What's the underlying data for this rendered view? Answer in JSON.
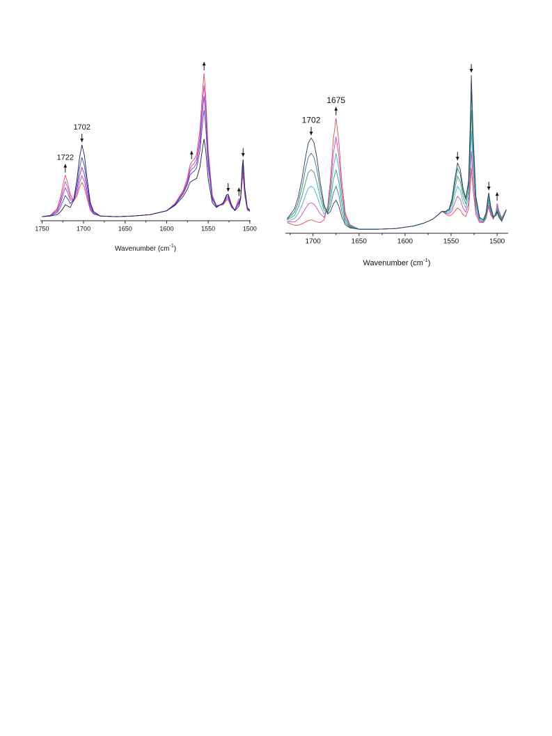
{
  "chart_data": [
    {
      "type": "line",
      "xlim": [
        1752,
        1499
      ],
      "xticks": [
        1750,
        1700,
        1650,
        1600,
        1550,
        1500
      ],
      "xminor": [
        1725,
        1675,
        1625,
        1575,
        1525
      ],
      "xlabel": [
        "Wavenumber (cm",
        "-1",
        ")"
      ],
      "x": [
        1750,
        1740,
        1732,
        1728,
        1725,
        1722,
        1719,
        1716,
        1712,
        1708,
        1705,
        1702,
        1699,
        1696,
        1692,
        1688,
        1680,
        1660,
        1640,
        1620,
        1600,
        1590,
        1580,
        1575,
        1572,
        1570,
        1567,
        1564,
        1560,
        1557,
        1555,
        1553,
        1550,
        1545,
        1540,
        1532,
        1528,
        1526,
        1522,
        1518,
        1515,
        1513,
        1511,
        1509,
        1508,
        1506,
        1503,
        1500
      ],
      "series": [
        {
          "color": "#e8474a",
          "values": [
            3,
            5,
            15,
            31,
            50,
            66,
            54,
            37,
            27,
            34,
            47,
            55,
            47,
            32,
            13,
            7,
            4,
            3,
            4,
            6,
            12,
            23,
            43,
            62,
            81,
            86,
            90,
            97,
            134,
            190,
            221,
            187,
            104,
            35,
            20,
            21,
            28,
            29,
            17,
            13,
            24,
            30,
            31,
            59,
            65,
            35,
            13,
            11
          ]
        },
        {
          "color": "#c040d0",
          "values": [
            3,
            5,
            13,
            26,
            42,
            56,
            47,
            32,
            27,
            38,
            54,
            65,
            56,
            37,
            15,
            7,
            4,
            3,
            4,
            6,
            12,
            22,
            41,
            58,
            76,
            80,
            84,
            90,
            123,
            174,
            202,
            171,
            95,
            33,
            19,
            22,
            30,
            31,
            18,
            13,
            22,
            27,
            31,
            64,
            71,
            38,
            14,
            11
          ]
        },
        {
          "color": "#8a3ad8",
          "values": [
            3,
            5,
            11,
            22,
            35,
            47,
            39,
            28,
            27,
            44,
            64,
            78,
            67,
            44,
            18,
            8,
            4,
            3,
            4,
            6,
            12,
            22,
            39,
            55,
            71,
            75,
            78,
            84,
            114,
            161,
            186,
            158,
            88,
            31,
            19,
            23,
            32,
            33,
            19,
            13,
            20,
            25,
            31,
            69,
            77,
            41,
            15,
            12
          ]
        },
        {
          "color": "#4040c8",
          "values": [
            3,
            4,
            9,
            17,
            26,
            35,
            30,
            23,
            28,
            50,
            76,
            93,
            80,
            53,
            21,
            9,
            4,
            3,
            4,
            6,
            12,
            21,
            38,
            52,
            66,
            69,
            72,
            77,
            103,
            143,
            165,
            140,
            79,
            29,
            18,
            23,
            34,
            35,
            20,
            13,
            19,
            23,
            31,
            73,
            83,
            44,
            16,
            12
          ]
        },
        {
          "color": "#1a1a50",
          "values": [
            3,
            4,
            6,
            10,
            15,
            21,
            19,
            17,
            28,
            59,
            91,
            112,
            96,
            63,
            25,
            11,
            4,
            3,
            4,
            6,
            12,
            20,
            34,
            45,
            55,
            57,
            59,
            61,
            78,
            106,
            121,
            104,
            60,
            24,
            17,
            24,
            36,
            37,
            21,
            12,
            16,
            19,
            30,
            79,
            90,
            47,
            17,
            13
          ]
        }
      ],
      "annotations": [
        {
          "x": 1722,
          "label": "1722",
          "direction": "up"
        },
        {
          "x": 1702,
          "label": "1702",
          "direction": "down"
        },
        {
          "x": 1570,
          "direction": "up"
        },
        {
          "x": 1555,
          "direction": "up"
        },
        {
          "x": 1526,
          "direction": "down"
        },
        {
          "x": 1513,
          "direction": "up"
        },
        {
          "x": 1508,
          "direction": "down"
        }
      ]
    },
    {
      "type": "line",
      "xlim": [
        1730,
        1488
      ],
      "xticks": [
        1700,
        1650,
        1600,
        1550,
        1500
      ],
      "xminor": [
        1725,
        1675,
        1625,
        1575,
        1525
      ],
      "xlabel": [
        "Wavenumber (cm",
        "-1",
        ")"
      ],
      "x": [
        1728,
        1720,
        1716,
        1712,
        1708,
        1705,
        1702,
        1699,
        1696,
        1692,
        1688,
        1684,
        1681,
        1678,
        1675,
        1672,
        1669,
        1665,
        1660,
        1650,
        1630,
        1610,
        1590,
        1580,
        1570,
        1564,
        1560,
        1556,
        1552,
        1549,
        1546,
        1543,
        1540,
        1537,
        1534,
        1531,
        1529,
        1528,
        1526,
        1523,
        1519,
        1515,
        1512,
        1510,
        1509,
        1507,
        1504,
        1501,
        1500,
        1498,
        1495,
        1490
      ],
      "series": [
        {
          "color": "#e84a4a",
          "values": [
            13,
            9,
            9,
            11,
            14,
            16,
            17,
            16,
            14,
            13,
            17,
            38,
            79,
            138,
            171,
            137,
            79,
            28,
            10,
            3,
            3,
            4,
            8,
            12,
            18,
            25,
            30,
            26,
            23,
            25,
            30,
            35,
            32,
            25,
            22,
            34,
            70,
            95,
            61,
            25,
            13,
            13,
            19,
            32,
            36,
            25,
            18,
            31,
            42,
            31,
            20,
            33
          ]
        },
        {
          "color": "#d040c0",
          "values": [
            14,
            14,
            18,
            25,
            35,
            41,
            43,
            41,
            35,
            26,
            21,
            35,
            68,
            116,
            143,
            115,
            66,
            24,
            9,
            3,
            3,
            4,
            8,
            12,
            18,
            25,
            30,
            27,
            26,
            31,
            43,
            53,
            48,
            35,
            29,
            42,
            89,
            121,
            76,
            30,
            15,
            13,
            21,
            35,
            40,
            27,
            19,
            29,
            40,
            29,
            19,
            33
          ]
        },
        {
          "color": "#40b0d0",
          "values": [
            15,
            19,
            27,
            39,
            55,
            65,
            68,
            65,
            55,
            38,
            26,
            33,
            58,
            96,
            118,
            95,
            55,
            20,
            8,
            3,
            3,
            4,
            8,
            12,
            18,
            25,
            30,
            28,
            28,
            36,
            54,
            68,
            62,
            44,
            35,
            52,
            111,
            152,
            95,
            36,
            16,
            14,
            22,
            39,
            44,
            30,
            20,
            28,
            37,
            27,
            18,
            33
          ]
        },
        {
          "color": "#30a070",
          "values": [
            17,
            24,
            36,
            53,
            75,
            89,
            93,
            89,
            75,
            50,
            31,
            30,
            48,
            77,
            93,
            75,
            44,
            17,
            7,
            3,
            3,
            4,
            8,
            12,
            18,
            25,
            30,
            29,
            31,
            42,
            64,
            83,
            75,
            53,
            41,
            61,
            133,
            183,
            113,
            42,
            18,
            15,
            24,
            42,
            48,
            32,
            20,
            26,
            34,
            25,
            17,
            32
          ]
        },
        {
          "color": "#2a7a80",
          "values": [
            18,
            29,
            44,
            66,
            95,
            112,
            118,
            112,
            95,
            62,
            36,
            28,
            38,
            57,
            68,
            55,
            32,
            13,
            6,
            3,
            3,
            4,
            8,
            12,
            18,
            25,
            30,
            29,
            32,
            46,
            72,
            95,
            86,
            60,
            47,
            70,
            155,
            213,
            132,
            48,
            20,
            17,
            26,
            46,
            53,
            35,
            21,
            25,
            31,
            23,
            16,
            32
          ]
        },
        {
          "color": "#283a5a",
          "values": [
            19,
            34,
            52,
            79,
            113,
            134,
            141,
            134,
            113,
            73,
            40,
            26,
            30,
            41,
            47,
            38,
            23,
            10,
            5,
            3,
            3,
            4,
            8,
            12,
            18,
            25,
            30,
            30,
            34,
            49,
            78,
            103,
            93,
            65,
            50,
            76,
            171,
            236,
            145,
            52,
            21,
            17,
            28,
            51,
            58,
            38,
            22,
            24,
            29,
            21,
            15,
            32
          ]
        }
      ],
      "annotations": [
        {
          "x": 1702,
          "label": "1702",
          "direction": "down"
        },
        {
          "x": 1675,
          "label": "1675",
          "direction": "up"
        },
        {
          "x": 1543,
          "direction": "down"
        },
        {
          "x": 1528,
          "direction": "down"
        },
        {
          "x": 1509,
          "direction": "down"
        },
        {
          "x": 1500,
          "direction": "up"
        }
      ]
    }
  ]
}
